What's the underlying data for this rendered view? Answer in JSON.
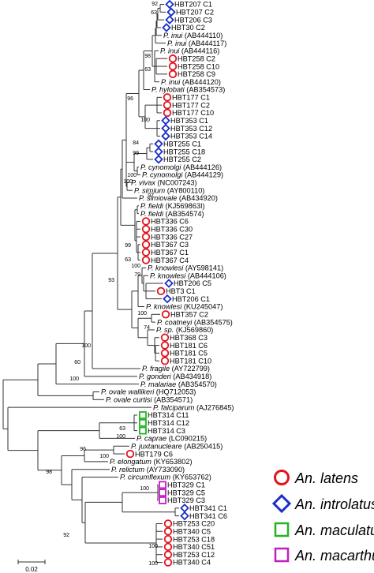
{
  "leaves": [
    {
      "id": "l0",
      "parts": [
        {
          "t": "HBT207 C1"
        }
      ],
      "marker": "diamond"
    },
    {
      "id": "l1",
      "parts": [
        {
          "t": "HBT207 C2"
        }
      ],
      "marker": "diamond"
    },
    {
      "id": "l2",
      "parts": [
        {
          "t": "HBT206 C3"
        }
      ],
      "marker": "diamond"
    },
    {
      "id": "l3",
      "parts": [
        {
          "t": "HBT30 C2"
        }
      ],
      "marker": "diamond"
    },
    {
      "id": "l4",
      "parts": [
        {
          "t": "P. inui",
          "i": true
        },
        {
          "t": " (AB444110)"
        }
      ]
    },
    {
      "id": "l5",
      "parts": [
        {
          "t": "P. inui",
          "i": true
        },
        {
          "t": " (AB444117)"
        }
      ]
    },
    {
      "id": "l6",
      "parts": [
        {
          "t": "P. inui",
          "i": true
        },
        {
          "t": " (AB444116)"
        }
      ]
    },
    {
      "id": "l7",
      "parts": [
        {
          "t": "HBT258 C2"
        }
      ],
      "marker": "circle"
    },
    {
      "id": "l8",
      "parts": [
        {
          "t": "HBT258 C10"
        }
      ],
      "marker": "circle"
    },
    {
      "id": "l9",
      "parts": [
        {
          "t": "HBT258 C9"
        }
      ],
      "marker": "circle"
    },
    {
      "id": "l10",
      "parts": [
        {
          "t": "P. inui",
          "i": true
        },
        {
          "t": " (AB444120)"
        }
      ]
    },
    {
      "id": "l11",
      "parts": [
        {
          "t": "P. hylobati",
          "i": true
        },
        {
          "t": " (AB354573)"
        }
      ]
    },
    {
      "id": "l12",
      "parts": [
        {
          "t": "HBT177 C1"
        }
      ],
      "marker": "circle"
    },
    {
      "id": "l13",
      "parts": [
        {
          "t": "HBT177 C2"
        }
      ],
      "marker": "circle"
    },
    {
      "id": "l14",
      "parts": [
        {
          "t": "HBT177 C10"
        }
      ],
      "marker": "circle"
    },
    {
      "id": "l15",
      "parts": [
        {
          "t": "HBT353 C1"
        }
      ],
      "marker": "diamond"
    },
    {
      "id": "l16",
      "parts": [
        {
          "t": "HBT353 C12"
        }
      ],
      "marker": "diamond"
    },
    {
      "id": "l17",
      "parts": [
        {
          "t": "HBT353 C14"
        }
      ],
      "marker": "diamond"
    },
    {
      "id": "l18",
      "parts": [
        {
          "t": "HBT255 C1"
        }
      ],
      "marker": "diamond"
    },
    {
      "id": "l19",
      "parts": [
        {
          "t": "HBT255 C18"
        }
      ],
      "marker": "diamond"
    },
    {
      "id": "l20",
      "parts": [
        {
          "t": "HBT255 C2"
        }
      ],
      "marker": "diamond"
    },
    {
      "id": "l21",
      "parts": [
        {
          "t": "P. cynomolgi",
          "i": true
        },
        {
          "t": " (AB444126)"
        }
      ]
    },
    {
      "id": "l22",
      "parts": [
        {
          "t": "P. cynomolgi",
          "i": true
        },
        {
          "t": " (AB444129)"
        }
      ]
    },
    {
      "id": "l23",
      "parts": [
        {
          "t": "P. vivax",
          "i": true
        },
        {
          "t": " (NC007243)"
        }
      ]
    },
    {
      "id": "l24",
      "parts": [
        {
          "t": "P. simium",
          "i": true
        },
        {
          "t": " (AY800110)"
        }
      ]
    },
    {
      "id": "l25",
      "parts": [
        {
          "t": "P. simiovale",
          "i": true
        },
        {
          "t": " (AB434920)"
        }
      ]
    },
    {
      "id": "l26",
      "parts": [
        {
          "t": "P. fieldi",
          "i": true
        },
        {
          "t": " (KJ569863I)"
        }
      ]
    },
    {
      "id": "l27",
      "parts": [
        {
          "t": "P. fieldi",
          "i": true
        },
        {
          "t": " (AB354574)"
        }
      ]
    },
    {
      "id": "l28",
      "parts": [
        {
          "t": "HBT336 C6"
        }
      ],
      "marker": "circle"
    },
    {
      "id": "l29",
      "parts": [
        {
          "t": "HBT336 C30"
        }
      ],
      "marker": "circle"
    },
    {
      "id": "l30",
      "parts": [
        {
          "t": "HBT336 C27"
        }
      ],
      "marker": "circle"
    },
    {
      "id": "l31",
      "parts": [
        {
          "t": "HBT367 C3"
        }
      ],
      "marker": "circle"
    },
    {
      "id": "l32",
      "parts": [
        {
          "t": "HBT367 C1"
        }
      ],
      "marker": "circle"
    },
    {
      "id": "l33",
      "parts": [
        {
          "t": "HBT367 C4"
        }
      ],
      "marker": "circle"
    },
    {
      "id": "l34",
      "parts": [
        {
          "t": "P. knowlesi",
          "i": true
        },
        {
          "t": " (AY598141)"
        }
      ]
    },
    {
      "id": "l35",
      "parts": [
        {
          "t": "P. knowlesi",
          "i": true
        },
        {
          "t": " (AB444106)"
        }
      ]
    },
    {
      "id": "l36",
      "parts": [
        {
          "t": "HBT206 C5"
        }
      ],
      "marker": "diamond"
    },
    {
      "id": "l37",
      "parts": [
        {
          "t": "HBT3 C1"
        }
      ],
      "marker": "circle"
    },
    {
      "id": "l38",
      "parts": [
        {
          "t": "HBT206 C1"
        }
      ],
      "marker": "diamond"
    },
    {
      "id": "l39",
      "parts": [
        {
          "t": "P. knowlesi",
          "i": true
        },
        {
          "t": " (KU245047)"
        }
      ]
    },
    {
      "id": "l40",
      "parts": [
        {
          "t": "HBT357 C2"
        }
      ],
      "marker": "circle"
    },
    {
      "id": "l41",
      "parts": [
        {
          "t": "P. coatneyi",
          "i": true
        },
        {
          "t": " (AB354575)"
        }
      ]
    },
    {
      "id": "l42",
      "parts": [
        {
          "t": "P. sp.",
          "i": true
        },
        {
          "t": " (KJ569860)"
        }
      ]
    },
    {
      "id": "l43",
      "parts": [
        {
          "t": "HBT368 C3"
        }
      ],
      "marker": "circle"
    },
    {
      "id": "l44",
      "parts": [
        {
          "t": "HBT181 C6"
        }
      ],
      "marker": "circle"
    },
    {
      "id": "l45",
      "parts": [
        {
          "t": "HBT181 C5"
        }
      ],
      "marker": "circle"
    },
    {
      "id": "l46",
      "parts": [
        {
          "t": "HBT181 C10"
        }
      ],
      "marker": "circle"
    },
    {
      "id": "l47",
      "parts": [
        {
          "t": "P. fragile",
          "i": true
        },
        {
          "t": " (AY722799)"
        }
      ]
    },
    {
      "id": "l48",
      "parts": [
        {
          "t": "P. gonderi",
          "i": true
        },
        {
          "t": " (AB434918)"
        }
      ]
    },
    {
      "id": "l49",
      "parts": [
        {
          "t": "P. malariae",
          "i": true
        },
        {
          "t": " (AB354570)"
        }
      ]
    },
    {
      "id": "l50",
      "parts": [
        {
          "t": "P. ovale wallikeri",
          "i": true
        },
        {
          "t": " (HQ712053)"
        }
      ]
    },
    {
      "id": "l51",
      "parts": [
        {
          "t": "P. ovale curtisi",
          "i": true
        },
        {
          "t": " (AB354571)"
        }
      ]
    },
    {
      "id": "l52",
      "parts": [
        {
          "t": "P. falciparum",
          "i": true
        },
        {
          "t": " (AJ276845)"
        }
      ]
    },
    {
      "id": "l53",
      "parts": [
        {
          "t": "HBT314 C11"
        }
      ],
      "marker": "square-green"
    },
    {
      "id": "l54",
      "parts": [
        {
          "t": "HBT314 C12"
        }
      ],
      "marker": "square-green"
    },
    {
      "id": "l55",
      "parts": [
        {
          "t": "HBT314 C3"
        }
      ],
      "marker": "square-green"
    },
    {
      "id": "l56",
      "parts": [
        {
          "t": "P. caprae",
          "i": true
        },
        {
          "t": " (LC090215)"
        }
      ]
    },
    {
      "id": "l57",
      "parts": [
        {
          "t": "P. juxtanucleare",
          "i": true
        },
        {
          "t": " (AB250415)"
        }
      ]
    },
    {
      "id": "l58",
      "parts": [
        {
          "t": "HBT179 C6"
        }
      ],
      "marker": "circle"
    },
    {
      "id": "l59",
      "parts": [
        {
          "t": "P. elongatum",
          "i": true
        },
        {
          "t": " (KY653802)"
        }
      ]
    },
    {
      "id": "l60",
      "parts": [
        {
          "t": "P. relictum",
          "i": true
        },
        {
          "t": " (AY733090)"
        }
      ]
    },
    {
      "id": "l61",
      "parts": [
        {
          "t": "P. circumflexum",
          "i": true
        },
        {
          "t": " (KY653762)"
        }
      ]
    },
    {
      "id": "l62",
      "parts": [
        {
          "t": "HBT329 C1"
        }
      ],
      "marker": "square-magenta"
    },
    {
      "id": "l63",
      "parts": [
        {
          "t": "HBT329 C5"
        }
      ],
      "marker": "square-magenta"
    },
    {
      "id": "l64",
      "parts": [
        {
          "t": "HBT329 C3"
        }
      ],
      "marker": "square-magenta"
    },
    {
      "id": "l65",
      "parts": [
        {
          "t": "HBT341 C1"
        }
      ],
      "marker": "diamond"
    },
    {
      "id": "l66",
      "parts": [
        {
          "t": "HBT341 C6"
        }
      ],
      "marker": "diamond"
    },
    {
      "id": "l67",
      "parts": [
        {
          "t": "HBT253 C20"
        }
      ],
      "marker": "circle"
    },
    {
      "id": "l68",
      "parts": [
        {
          "t": "HBT340 C5"
        }
      ],
      "marker": "circle"
    },
    {
      "id": "l69",
      "parts": [
        {
          "t": "HBT253 C18"
        }
      ],
      "marker": "circle"
    },
    {
      "id": "l70",
      "parts": [
        {
          "t": "HBT340 C51"
        }
      ],
      "marker": "circle"
    },
    {
      "id": "l71",
      "parts": [
        {
          "t": "HBT253 C12"
        }
      ],
      "marker": "circle"
    },
    {
      "id": "l72",
      "parts": [
        {
          "t": "HBT340 C4"
        }
      ],
      "marker": "circle"
    }
  ],
  "bootstrap_labels": [
    "92",
    "63",
    "98",
    "63",
    "96",
    "100",
    "84",
    "99",
    "100",
    "100",
    "97",
    "99",
    "63",
    "100",
    "79",
    "100",
    "74",
    "93",
    "100",
    "60",
    "100",
    "63",
    "100",
    "96",
    "100",
    "98",
    "100",
    "92",
    "100",
    "100"
  ],
  "legend": [
    {
      "marker": "circle",
      "color": "#e0141e",
      "label": "An. latens"
    },
    {
      "marker": "diamond",
      "color": "#1a2fc8",
      "label": "An. introlatus"
    },
    {
      "marker": "square",
      "color": "#22b522",
      "label": "An. maculatus"
    },
    {
      "marker": "square",
      "color": "#c41cc4",
      "label": "An. macarthuri"
    }
  ],
  "scale_bar_label": "0.02",
  "colors": {
    "latens": "#e0141e",
    "introlatus": "#1a2fc8",
    "maculatus": "#22b522",
    "macarthuri": "#c41cc4",
    "branch": "#333333"
  }
}
